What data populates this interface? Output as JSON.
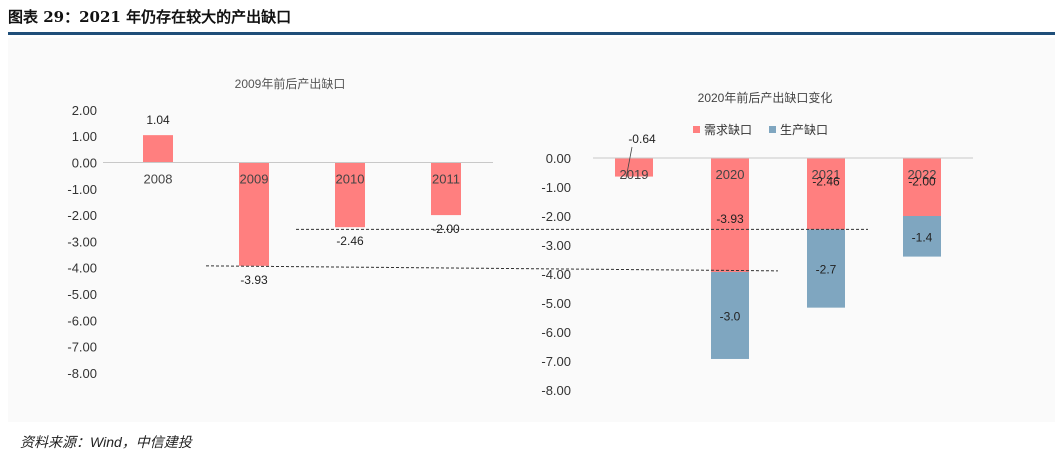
{
  "figure_title": "图表 29：2021 年仍存在较大的产出缺口",
  "source": "资料来源：Wind，中信建投",
  "chart_data": [
    {
      "type": "bar",
      "title": "2009年前后产出缺口",
      "categories": [
        "2008",
        "2009",
        "2010",
        "2011"
      ],
      "values": [
        1.04,
        -3.93,
        -2.46,
        -2.0
      ],
      "value_labels": [
        "1.04",
        "-3.93",
        "-2.46",
        "-2.00"
      ],
      "ylim": [
        -8,
        2
      ],
      "yticks": [
        "2.00",
        "1.00",
        "0.00",
        "-1.00",
        "-2.00",
        "-3.00",
        "-4.00",
        "-5.00",
        "-6.00",
        "-7.00",
        "-8.00"
      ],
      "color": "#ff7f7f"
    },
    {
      "type": "stacked-bar",
      "title": "2020年前后产出缺口变化",
      "categories": [
        "2019",
        "2020",
        "2021",
        "2022"
      ],
      "series": [
        {
          "name": "需求缺口",
          "color": "#ff7f7f",
          "values": [
            -0.64,
            -3.93,
            -2.46,
            -2.0
          ],
          "labels": [
            "-0.64",
            "-3.93",
            "-2.46",
            "-2.00"
          ]
        },
        {
          "name": "生产缺口",
          "color": "#7fa6c0",
          "values": [
            0,
            -3.0,
            -2.7,
            -1.4
          ],
          "labels": [
            "",
            "-3.0",
            "-2.7",
            "-1.4"
          ]
        }
      ],
      "ylim": [
        -8,
        0
      ],
      "yticks": [
        "0.00",
        "-1.00",
        "-2.00",
        "-3.00",
        "-4.00",
        "-5.00",
        "-6.00",
        "-7.00",
        "-8.00"
      ],
      "legend": "top"
    }
  ]
}
